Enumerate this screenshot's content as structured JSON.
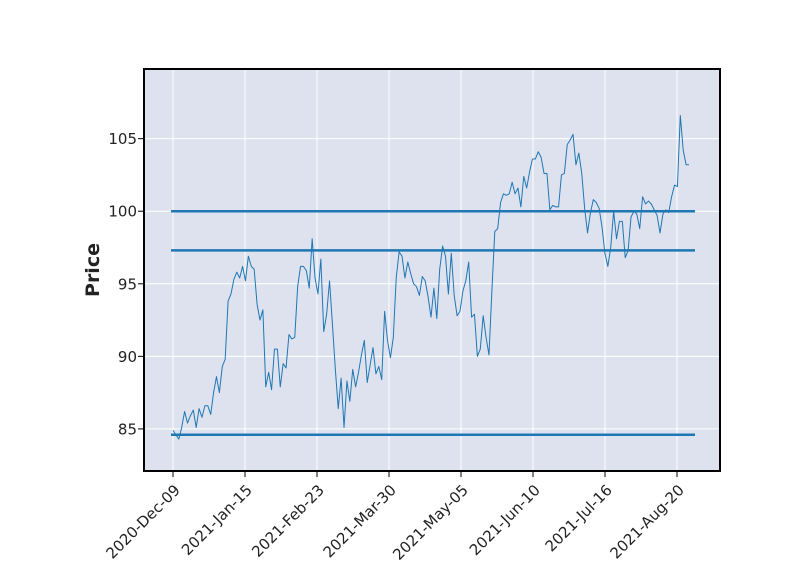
{
  "chart_data": {
    "type": "line",
    "title": "",
    "xlabel": "",
    "ylabel": "Price",
    "x_tick_labels": [
      "2020-Dec-09",
      "2021-Jan-15",
      "2021-Feb-23",
      "2021-Mar-30",
      "2021-May-05",
      "2021-Jun-10",
      "2021-Jul-16",
      "2021-Aug-20"
    ],
    "y_ticks": [
      85,
      90,
      95,
      100,
      105
    ],
    "ylim": [
      82.1,
      109.8
    ],
    "grid": true,
    "background_color": "#dde2ee",
    "line_color": "#1f77b4",
    "series": [
      {
        "values": [
          84.9,
          84.6,
          84.3,
          85.1,
          86.2,
          85.4,
          85.9,
          86.3,
          85.1,
          86.4,
          85.8,
          86.6,
          86.6,
          86.0,
          87.5,
          88.6,
          87.5,
          89.3,
          89.8,
          93.8,
          94.3,
          95.3,
          95.8,
          95.4,
          96.2,
          95.2,
          96.9,
          96.2,
          96.0,
          93.6,
          92.5,
          93.2,
          87.9,
          88.9,
          87.7,
          90.5,
          90.5,
          87.9,
          89.5,
          89.2,
          91.5,
          91.2,
          91.3,
          94.8,
          96.2,
          96.2,
          95.9,
          94.7,
          98.1,
          95.4,
          94.3,
          96.7,
          91.7,
          92.9,
          95.2,
          92.2,
          89.1,
          86.4,
          88.5,
          85.1,
          88.3,
          86.9,
          89.1,
          87.9,
          88.9,
          90.1,
          91.1,
          88.2,
          89.4,
          90.6,
          88.8,
          89.3,
          88.4,
          93.1,
          91.1,
          89.9,
          91.3,
          95.4,
          97.2,
          96.9,
          95.4,
          96.5,
          95.7,
          95.0,
          94.8,
          94.2,
          95.5,
          95.2,
          94.1,
          92.7,
          94.7,
          92.6,
          96.0,
          97.6,
          96.9,
          94.3,
          97.1,
          94.2,
          92.8,
          93.1,
          94.5,
          95.2,
          96.5,
          92.7,
          92.9,
          90.0,
          90.5,
          92.8,
          91.3,
          90.1,
          94.5,
          98.6,
          98.8,
          100.6,
          101.2,
          101.1,
          101.2,
          102.0,
          101.2,
          101.6,
          100.3,
          102.4,
          101.6,
          102.7,
          103.6,
          103.6,
          104.1,
          103.7,
          102.6,
          102.6,
          100.1,
          100.4,
          100.3,
          100.3,
          102.5,
          102.6,
          104.6,
          104.9,
          105.3,
          103.2,
          104.0,
          102.6,
          100.2,
          98.5,
          99.9,
          100.8,
          100.6,
          100.2,
          98.9,
          97.1,
          96.2,
          97.5,
          100.0,
          98.1,
          99.3,
          99.3,
          96.8,
          97.3,
          99.6,
          100.0,
          99.8,
          98.8,
          101.0,
          100.5,
          100.7,
          100.5,
          100.1,
          99.7,
          98.5,
          99.8,
          100.1,
          99.9,
          101.0,
          101.8,
          101.7,
          106.6,
          104.2,
          103.2,
          103.2
        ]
      }
    ],
    "hlines": [
      {
        "value": 100.0,
        "color": "#1f77b4"
      },
      {
        "value": 97.3,
        "color": "#1f77b4"
      },
      {
        "value": 84.6,
        "color": "#1f77b4"
      }
    ]
  }
}
